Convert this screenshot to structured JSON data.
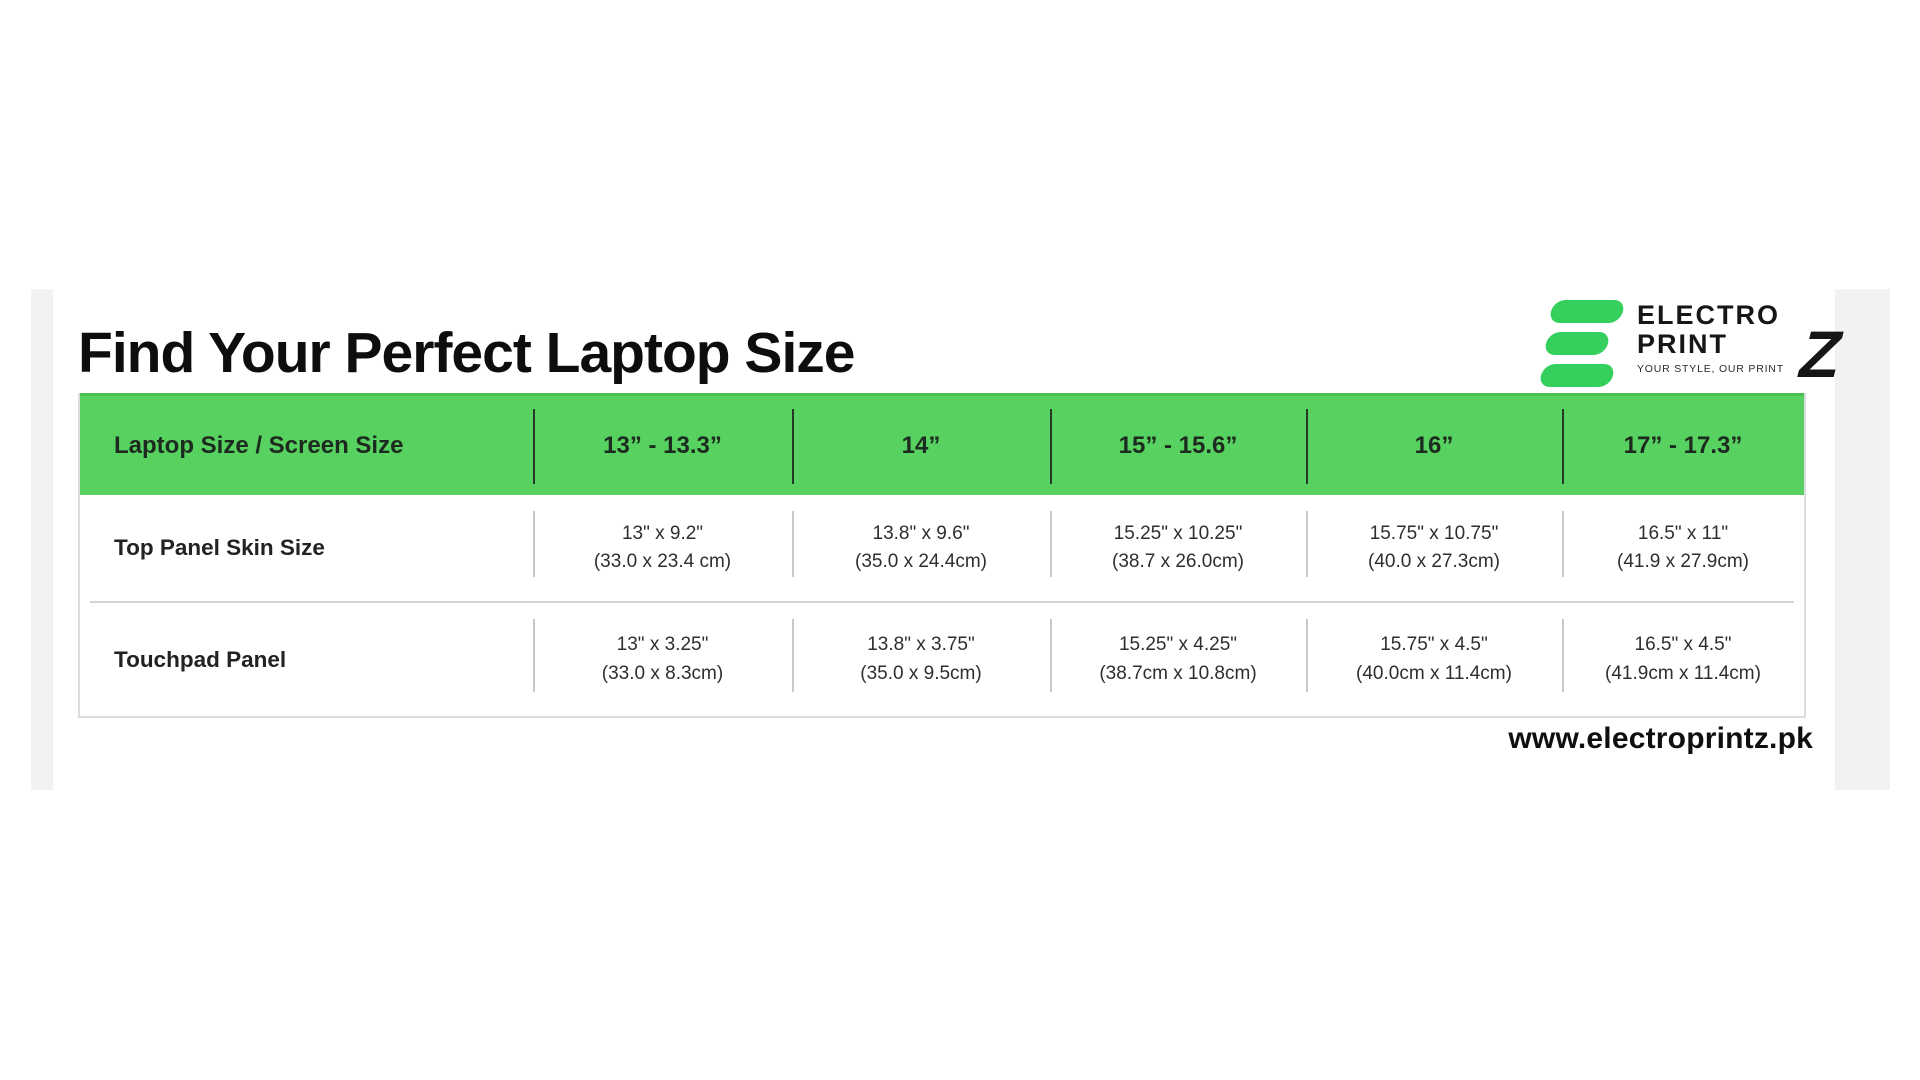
{
  "page": {
    "title": "Find Your Perfect Laptop Size",
    "website": "www.electroprintz.pk"
  },
  "logo": {
    "line1": "ELECTRO",
    "line2": "PRINT",
    "z": "Z",
    "tagline": "YOUR STYLE, OUR PRINT",
    "icon": "stacked-green-bars-e-icon",
    "green": "#35cf5e",
    "black": "#161616"
  },
  "colors": {
    "header_green": "#57d15f",
    "header_green_edge": "#48c253",
    "table_border": "#dcdcdc",
    "divider_gray": "#c9c9c9",
    "header_text": "#1d2a1f",
    "body_text": "#2e2e2e",
    "edge_strip": "#f2f2f2"
  },
  "table": {
    "columns": [
      "Laptop Size / Screen Size",
      "13” - 13.3”",
      "14”",
      "15” - 15.6”",
      "16”",
      "17” - 17.3”"
    ],
    "rows": [
      {
        "label": "Top Panel Skin Size",
        "cells": [
          [
            "13\" x 9.2\"",
            "(33.0 x 23.4 cm)"
          ],
          [
            "13.8\" x 9.6\"",
            "(35.0 x 24.4cm)"
          ],
          [
            "15.25\" x 10.25\"",
            "(38.7 x 26.0cm)"
          ],
          [
            "15.75\" x 10.75\"",
            "(40.0 x 27.3cm)"
          ],
          [
            "16.5\" x 11\"",
            "(41.9 x 27.9cm)"
          ]
        ]
      },
      {
        "label": "Touchpad Panel",
        "cells": [
          [
            "13\" x 3.25\"",
            "(33.0 x 8.3cm)"
          ],
          [
            "13.8\" x 3.75\"",
            "(35.0 x 9.5cm)"
          ],
          [
            "15.25\" x 4.25\"",
            "(38.7cm x 10.8cm)"
          ],
          [
            "15.75\" x 4.5\"",
            "(40.0cm x 11.4cm)"
          ],
          [
            "16.5\" x 4.5\"",
            "(41.9cm x 11.4cm)"
          ]
        ]
      }
    ]
  }
}
